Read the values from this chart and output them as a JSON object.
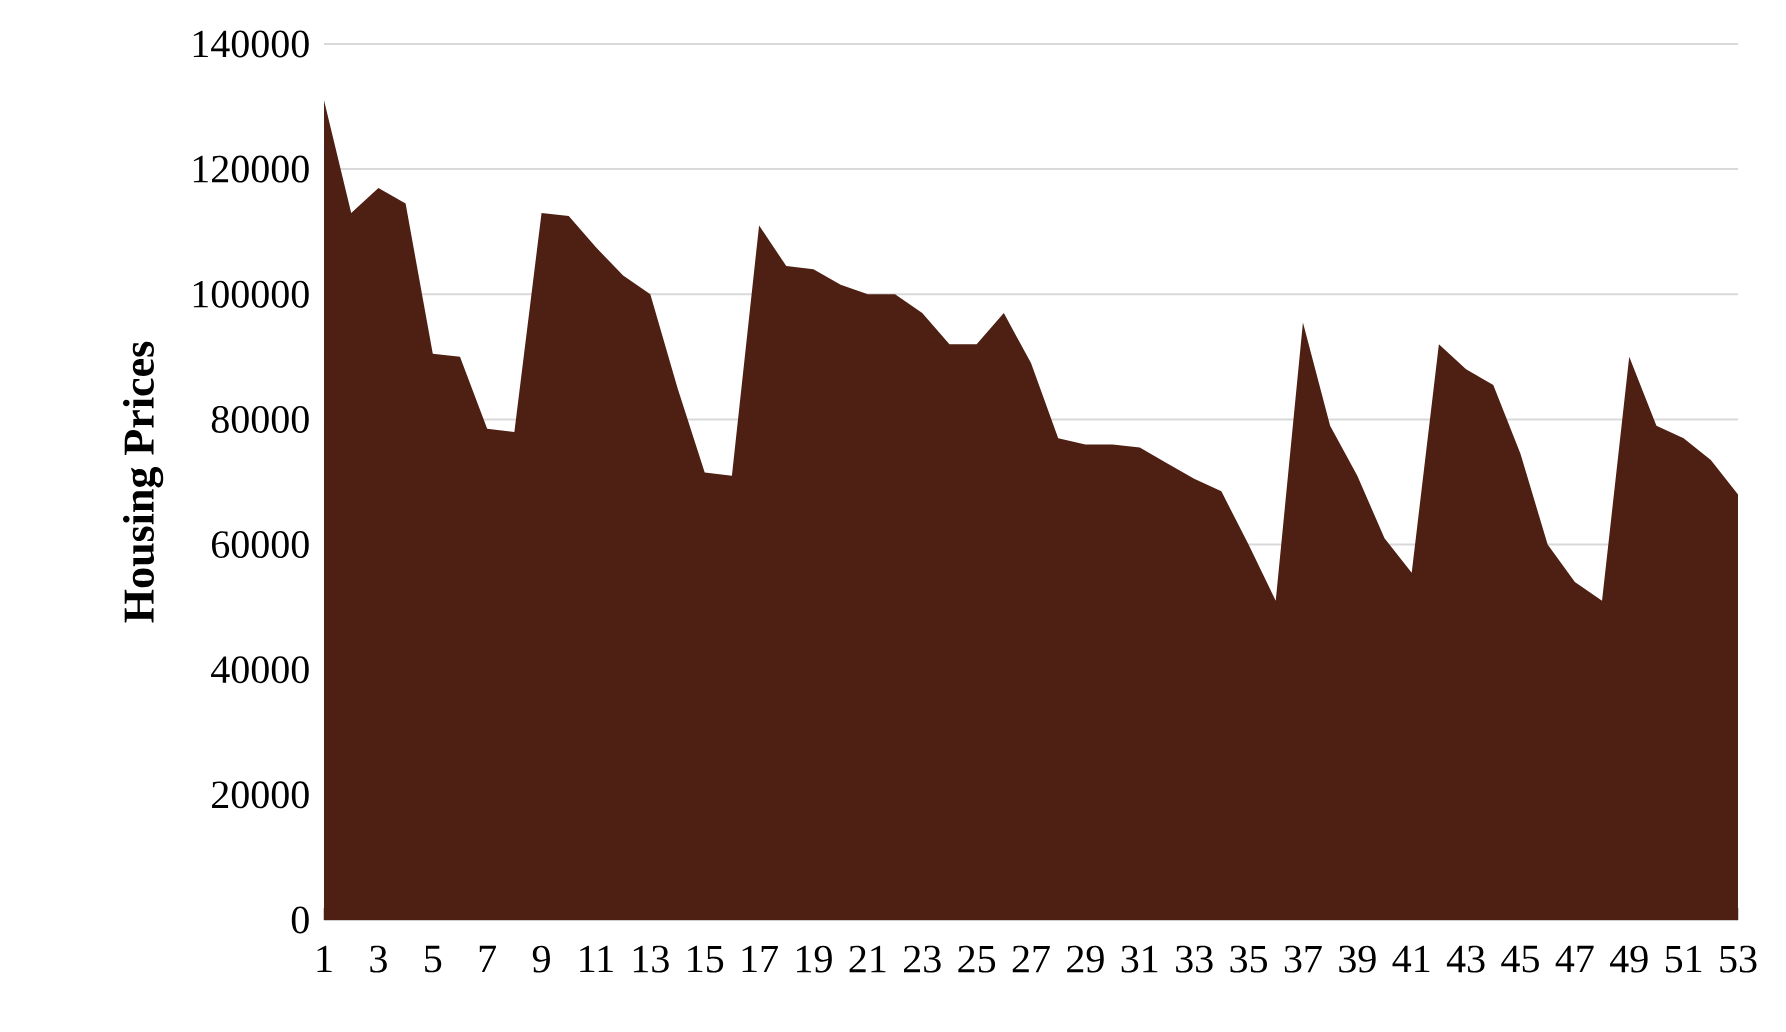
{
  "chart_data": {
    "type": "area",
    "ylabel": "Housing Prices",
    "categories": [
      "1",
      null,
      "3",
      null,
      "5",
      null,
      "7",
      null,
      "9",
      null,
      "11",
      null,
      "13",
      null,
      "15",
      null,
      "17",
      null,
      "19",
      null,
      "21",
      null,
      "23",
      null,
      "25",
      null,
      "27",
      null,
      "29",
      null,
      "31",
      null,
      "33",
      null,
      "35",
      null,
      "37",
      null,
      "39",
      null,
      "41",
      null,
      "43",
      null,
      "45",
      null,
      "47",
      null,
      "49",
      null,
      "51",
      null,
      "53"
    ],
    "values": [
      131000,
      113000,
      117000,
      114500,
      90500,
      90000,
      78500,
      78000,
      113000,
      112500,
      107500,
      103000,
      100000,
      85000,
      71500,
      71000,
      111000,
      104500,
      104000,
      101500,
      100000,
      100000,
      97000,
      92000,
      92000,
      97000,
      89000,
      77000,
      76000,
      76000,
      75500,
      73000,
      70500,
      68500,
      60000,
      51000,
      95500,
      79000,
      71000,
      61000,
      55500,
      92000,
      88000,
      85500,
      74500,
      60000,
      54000,
      51000,
      90000,
      79000,
      77000,
      73500,
      68000
    ],
    "color": "#4e2013",
    "ylim": [
      0,
      140000
    ],
    "yticks": [
      0,
      20000,
      40000,
      60000,
      80000,
      100000,
      120000,
      140000
    ],
    "grid": "y"
  }
}
